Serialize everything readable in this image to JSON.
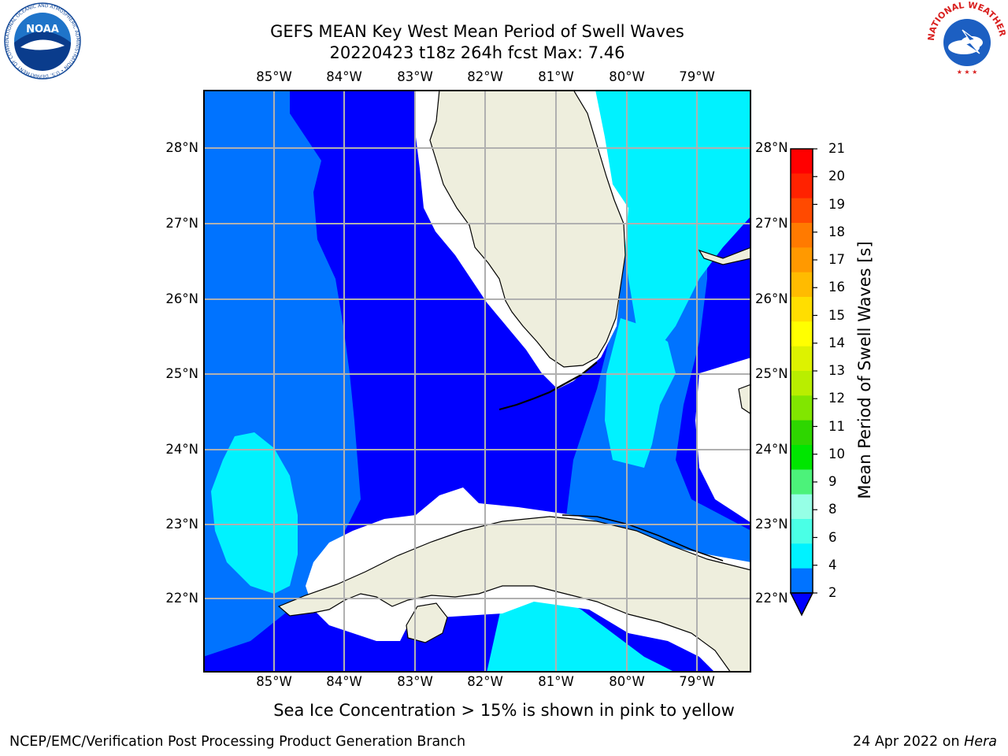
{
  "title": {
    "line1": "GEFS MEAN Key West Mean Period of Swell Waves",
    "line2": "20220423 t18z 264h fcst   Max: 7.46"
  },
  "map": {
    "lon_ticks": [
      "85°W",
      "84°W",
      "83°W",
      "82°W",
      "81°W",
      "80°W",
      "79°W"
    ],
    "lat_ticks": [
      "28°N",
      "27°N",
      "26°N",
      "25°N",
      "24°N",
      "23°N",
      "22°N"
    ],
    "grid": true,
    "colors": {
      "land": "#eeeedd",
      "period_2_4": "#0000ff",
      "period_4_6": "#0073ff",
      "period_6_8": "#00f2ff",
      "period_8_9": "#44ffe6",
      "no_data": "#ffffff",
      "grid": "#b0b0b0"
    }
  },
  "colorbar": {
    "label": "Mean Period of Swell Waves [s]",
    "ticks": [
      "21",
      "20",
      "19",
      "18",
      "17",
      "16",
      "15",
      "14",
      "13",
      "12",
      "11",
      "10",
      "9",
      "8",
      "6",
      "4",
      "2"
    ],
    "colors": [
      "#ff0000",
      "#ff2200",
      "#ff4a00",
      "#ff7a00",
      "#ff9900",
      "#ffbb00",
      "#ffde00",
      "#ffff00",
      "#ddf200",
      "#b9ee00",
      "#81e600",
      "#2ed600",
      "#00e600",
      "#4cf27a",
      "#96ffe6",
      "#4affe6",
      "#00f2ff",
      "#0073ff"
    ]
  },
  "footnote": "Sea Ice Concentration > 15% is shown in pink to yellow",
  "credit_left": "NCEP/EMC/Verification Post Processing Product Generation Branch",
  "credit_right_date": "24 Apr 2022 on",
  "credit_right_host": "Hera",
  "logos": {
    "noaa": "NOAA",
    "noaa_ring": "NATIONAL OCEANIC AND ATMOSPHERIC ADMINISTRATION • U.S. DEPARTMENT OF COMMERCE",
    "nws_ring": "NATIONAL WEATHER SERVICE"
  }
}
